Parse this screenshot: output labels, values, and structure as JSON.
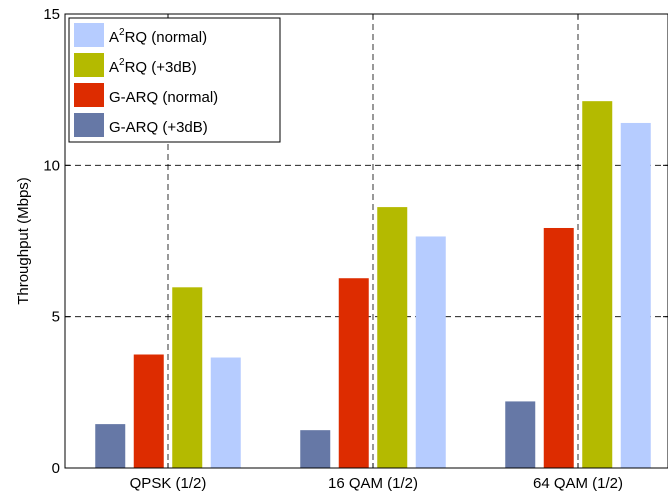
{
  "chart_data": {
    "type": "bar",
    "categories": [
      "QPSK (1/2)",
      "16 QAM (1/2)",
      "64 QAM (1/2)"
    ],
    "series": [
      {
        "name": "G-ARQ (+3dB)",
        "color": "#6678A6",
        "values": [
          1.45,
          1.25,
          2.2
        ]
      },
      {
        "name": "G-ARQ (normal)",
        "color": "#DD2C00",
        "values": [
          3.75,
          6.27,
          7.93
        ]
      },
      {
        "name": "A2RQ (+3dB)",
        "color": "#B4BA00",
        "values": [
          5.97,
          8.62,
          12.12
        ]
      },
      {
        "name": "A2RQ (normal)",
        "color": "#B6CCFF",
        "values": [
          3.65,
          7.65,
          11.4
        ]
      }
    ],
    "legend": [
      {
        "base": "A",
        "sup": "2",
        "rest": "RQ (normal)",
        "color": "#B6CCFF"
      },
      {
        "base": "A",
        "sup": "2",
        "rest": "RQ (+3dB)",
        "color": "#B4BA00"
      },
      {
        "base": "G-ARQ (normal)",
        "sup": "",
        "rest": "",
        "color": "#DD2C00"
      },
      {
        "base": "G-ARQ (+3dB)",
        "sup": "",
        "rest": "",
        "color": "#6678A6"
      }
    ],
    "legend_position": "top-left",
    "title": "",
    "xlabel": "",
    "ylabel": "Throughput (Mbps)",
    "ylim": [
      0,
      15
    ],
    "yticks": [
      0,
      5,
      10,
      15
    ],
    "grid": true
  }
}
